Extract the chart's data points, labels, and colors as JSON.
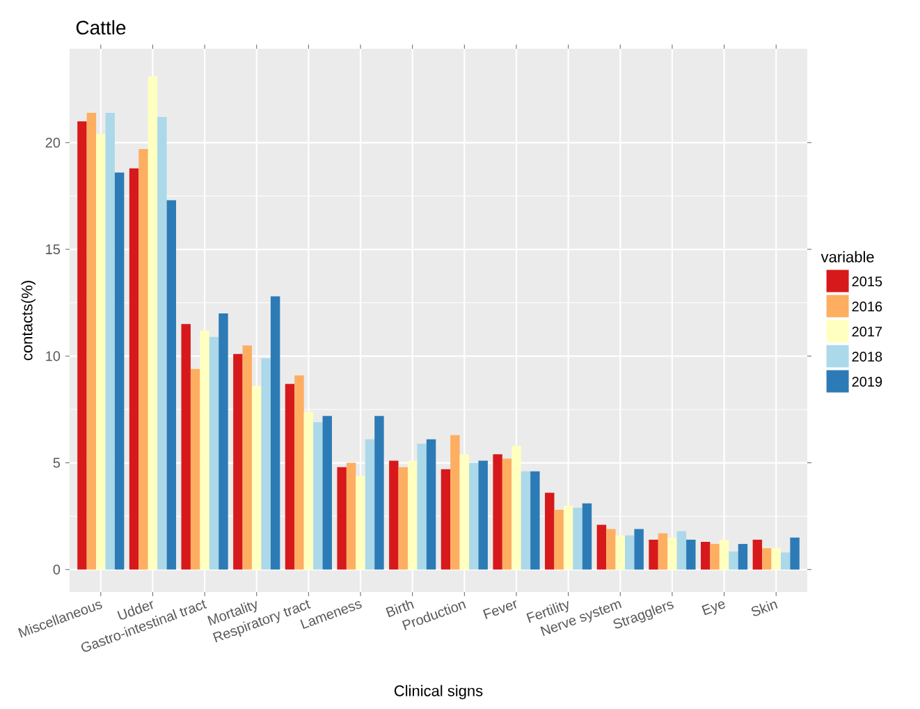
{
  "chart_data": {
    "type": "bar",
    "title": "Cattle",
    "xlabel": "Clinical signs",
    "ylabel": "contacts(%)",
    "legend_title": "variable",
    "categories": [
      "Miscellaneous",
      "Udder",
      "Gastro-intestinal tract",
      "Mortality",
      "Respiratory tract",
      "Lameness",
      "Birth",
      "Production",
      "Fever",
      "Fertility",
      "Nerve system",
      "Stragglers",
      "Eye",
      "Skin"
    ],
    "series": [
      {
        "name": "2015",
        "color": "#d7191c",
        "values": [
          21.0,
          18.8,
          11.5,
          10.1,
          8.7,
          4.8,
          5.1,
          4.7,
          5.4,
          3.6,
          2.1,
          1.4,
          1.3,
          1.4
        ]
      },
      {
        "name": "2016",
        "color": "#fdae61",
        "values": [
          21.4,
          19.7,
          9.4,
          10.5,
          9.1,
          5.0,
          4.8,
          6.3,
          5.2,
          2.8,
          1.9,
          1.7,
          1.2,
          1.0
        ]
      },
      {
        "name": "2017",
        "color": "#ffffbf",
        "values": [
          20.4,
          23.1,
          11.2,
          8.6,
          7.4,
          4.4,
          5.1,
          5.4,
          5.8,
          3.0,
          1.6,
          1.5,
          1.4,
          1.0
        ]
      },
      {
        "name": "2018",
        "color": "#abd9e9",
        "values": [
          21.4,
          21.2,
          10.9,
          9.9,
          6.9,
          6.1,
          5.9,
          5.0,
          4.6,
          2.9,
          1.6,
          1.8,
          0.85,
          0.8
        ]
      },
      {
        "name": "2019",
        "color": "#2c7bb6",
        "values": [
          18.6,
          17.3,
          12.0,
          12.8,
          7.2,
          7.2,
          6.1,
          5.1,
          4.6,
          3.1,
          1.9,
          1.4,
          1.2,
          1.5
        ]
      }
    ],
    "ylim": [
      -1.05,
      24.4
    ],
    "yticks": [
      0,
      5,
      10,
      15,
      20
    ],
    "grid": true,
    "legend": "right"
  }
}
